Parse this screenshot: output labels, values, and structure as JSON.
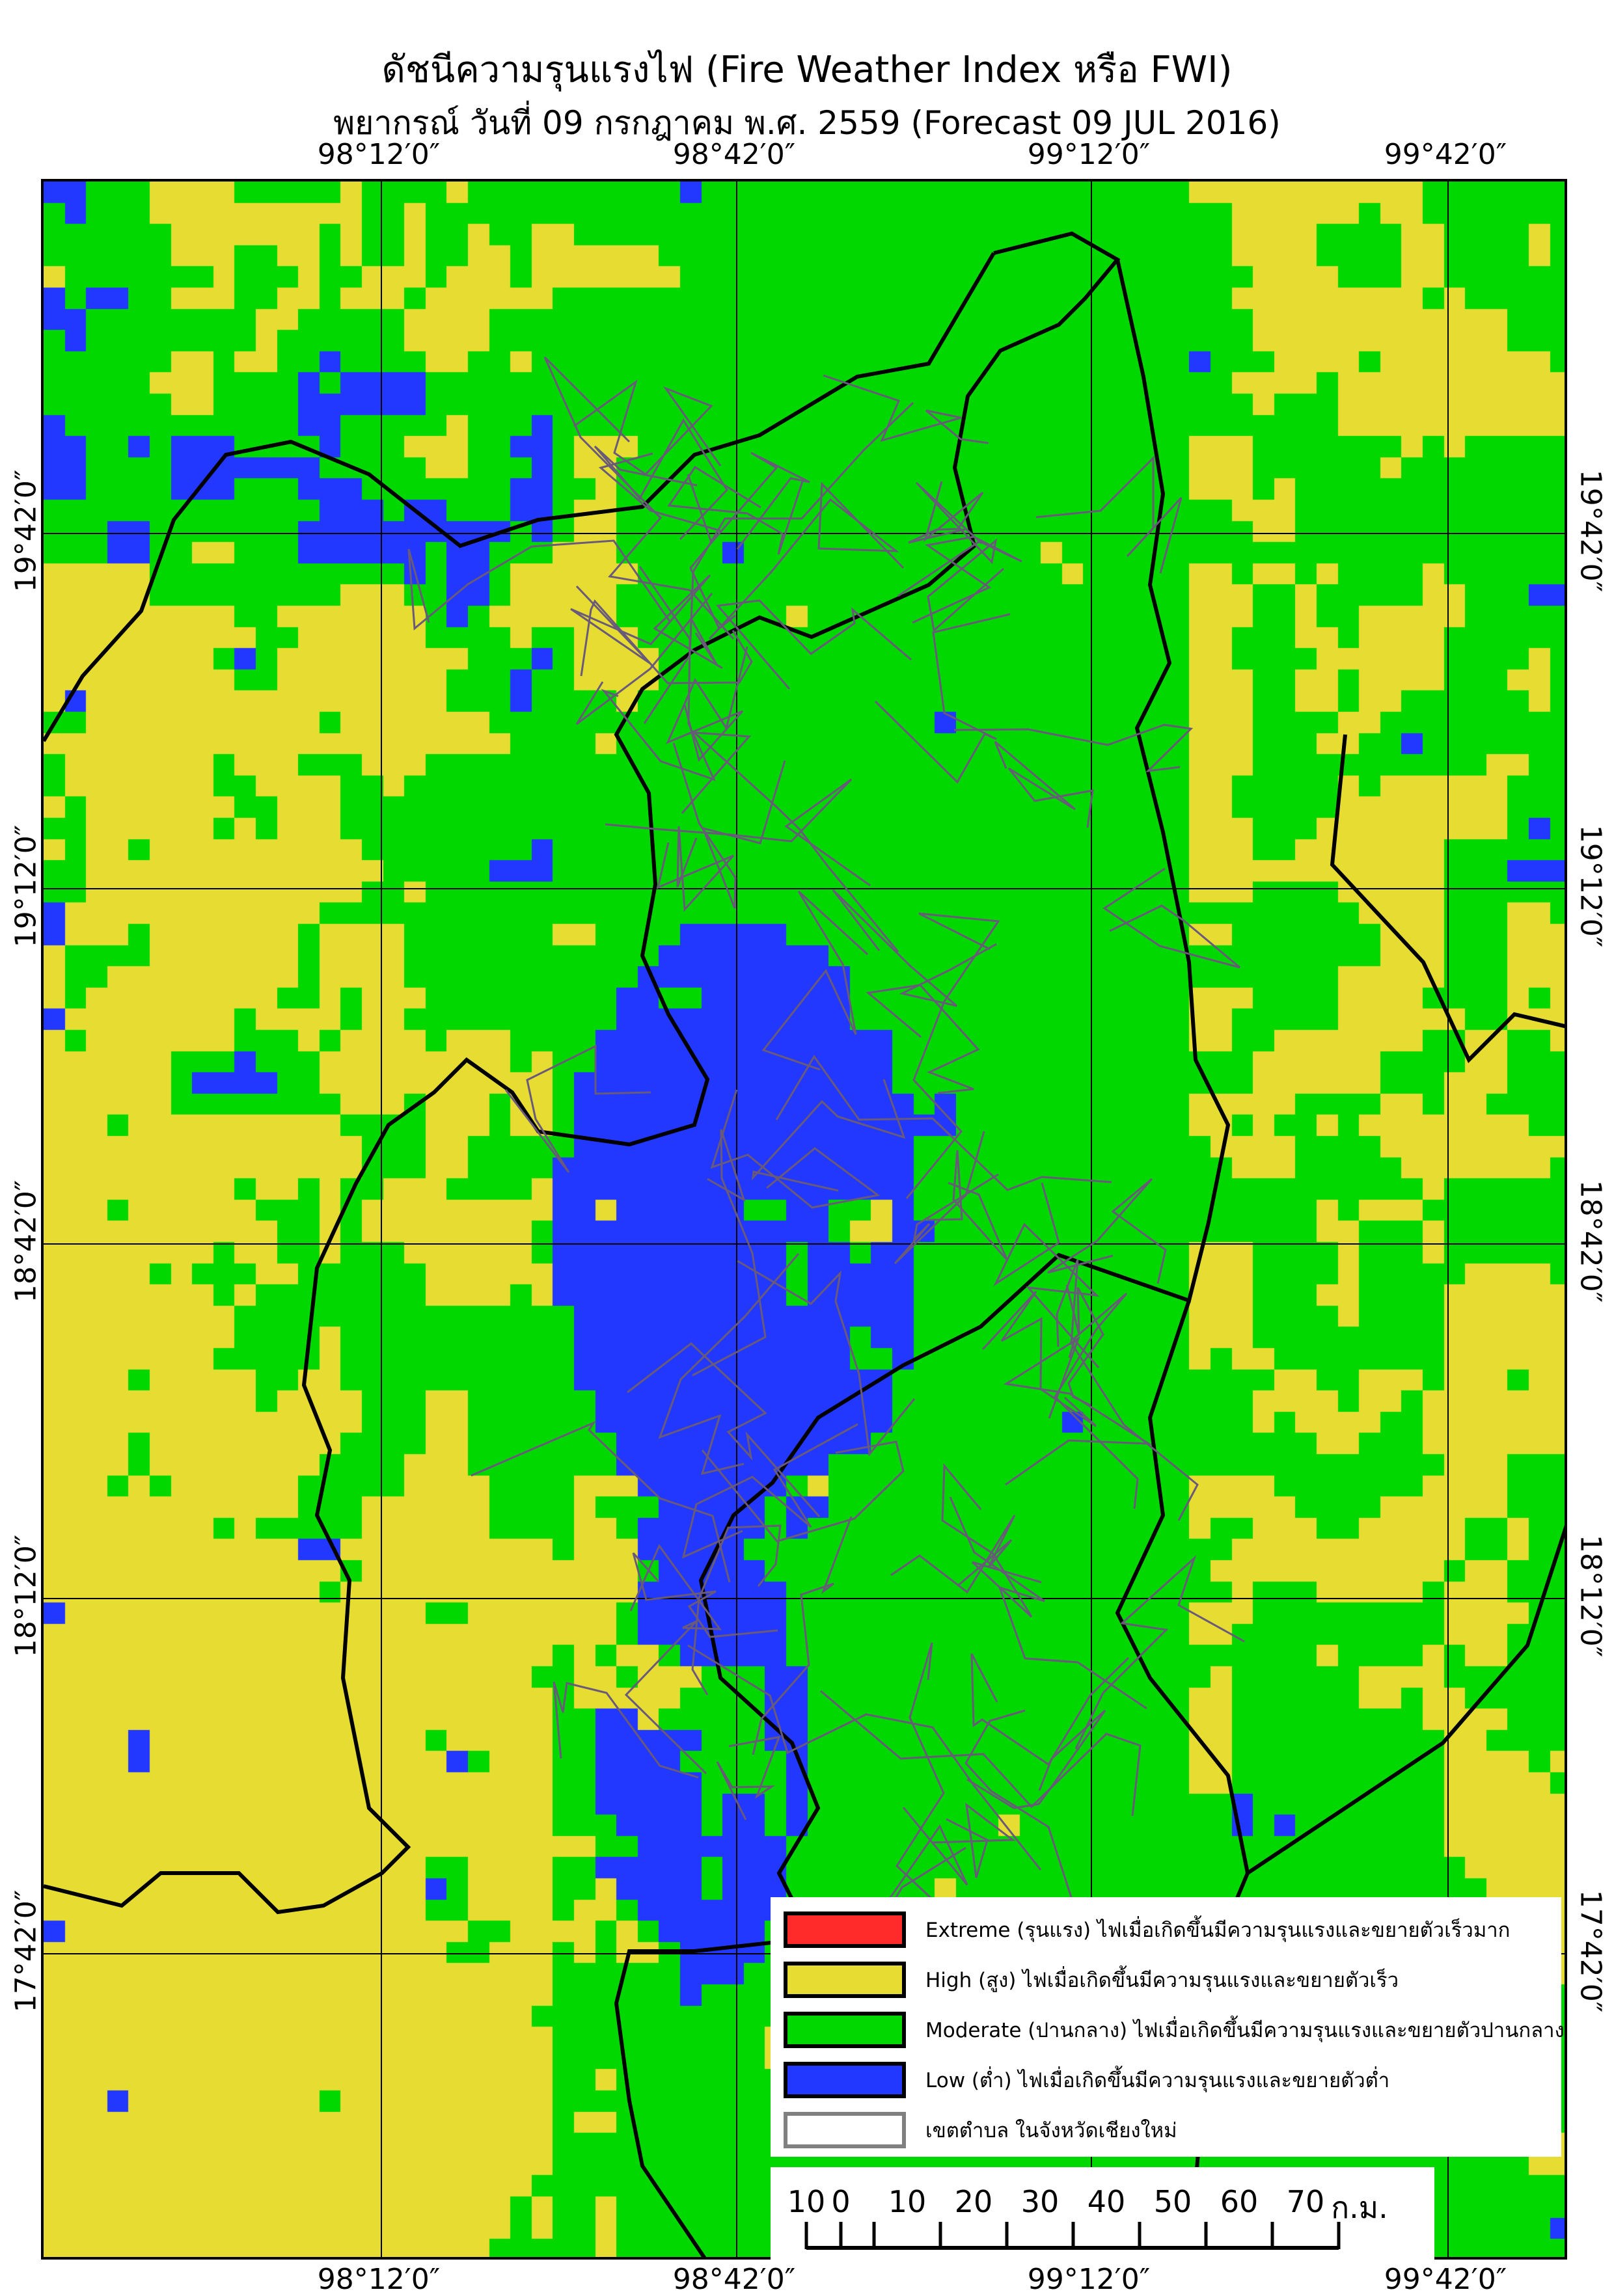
{
  "title": "ดัชนีความรุนแรงไฟ (Fire Weather Index หรือ FWI)",
  "subtitle": "พยากรณ์ วันที่ 09 กรกฎาคม พ.ศ. 2559 (Forecast 09 JUL 2016)",
  "longitude_ticks": [
    "98°12′0″",
    "98°42′0″",
    "99°12′0″",
    "99°42′0″"
  ],
  "latitude_ticks": [
    "19°42′0″",
    "19°12′0″",
    "18°42′0″",
    "18°12′0″",
    "17°42′0″"
  ],
  "colors": {
    "extreme": "#ff2a2a",
    "high": "#e6dc32",
    "moderate": "#00d800",
    "low": "#2238ff",
    "boundary": "#808080"
  },
  "legend": [
    {
      "label": "Extreme (รุนแรง) ไฟเมื่อเกิดขึ้นมีความรุนแรงและขยายตัวเร็วมาก",
      "color": "#ff2a2a"
    },
    {
      "label": "High (สูง) ไฟเมื่อเกิดขึ้นมีความรุนแรงและขยายตัวเร็ว",
      "color": "#e6dc32"
    },
    {
      "label": "Moderate (ปานกลาง) ไฟเมื่อเกิดขึ้นมีความรุนแรงและขยายตัวปานกลาง",
      "color": "#00d800"
    },
    {
      "label": "Low (ต่ำ) ไฟเมื่อเกิดขึ้นมีความรุนแรงและขยายตัวต่ำ",
      "color": "#2238ff"
    },
    {
      "label": "เขตตำบล ในจังหวัดเชียงใหม่",
      "color": "#ffffff"
    }
  ],
  "scale_bar": {
    "labels": [
      "10",
      "0",
      "10",
      "20",
      "30",
      "40",
      "50",
      "60",
      "70"
    ],
    "unit": "ก.ม."
  }
}
